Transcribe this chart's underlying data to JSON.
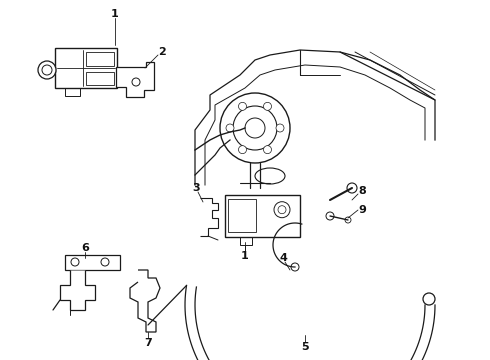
{
  "background_color": "#ffffff",
  "line_color": "#1a1a1a",
  "label_color": "#111111",
  "fig_width": 4.9,
  "fig_height": 3.6,
  "dpi": 100
}
